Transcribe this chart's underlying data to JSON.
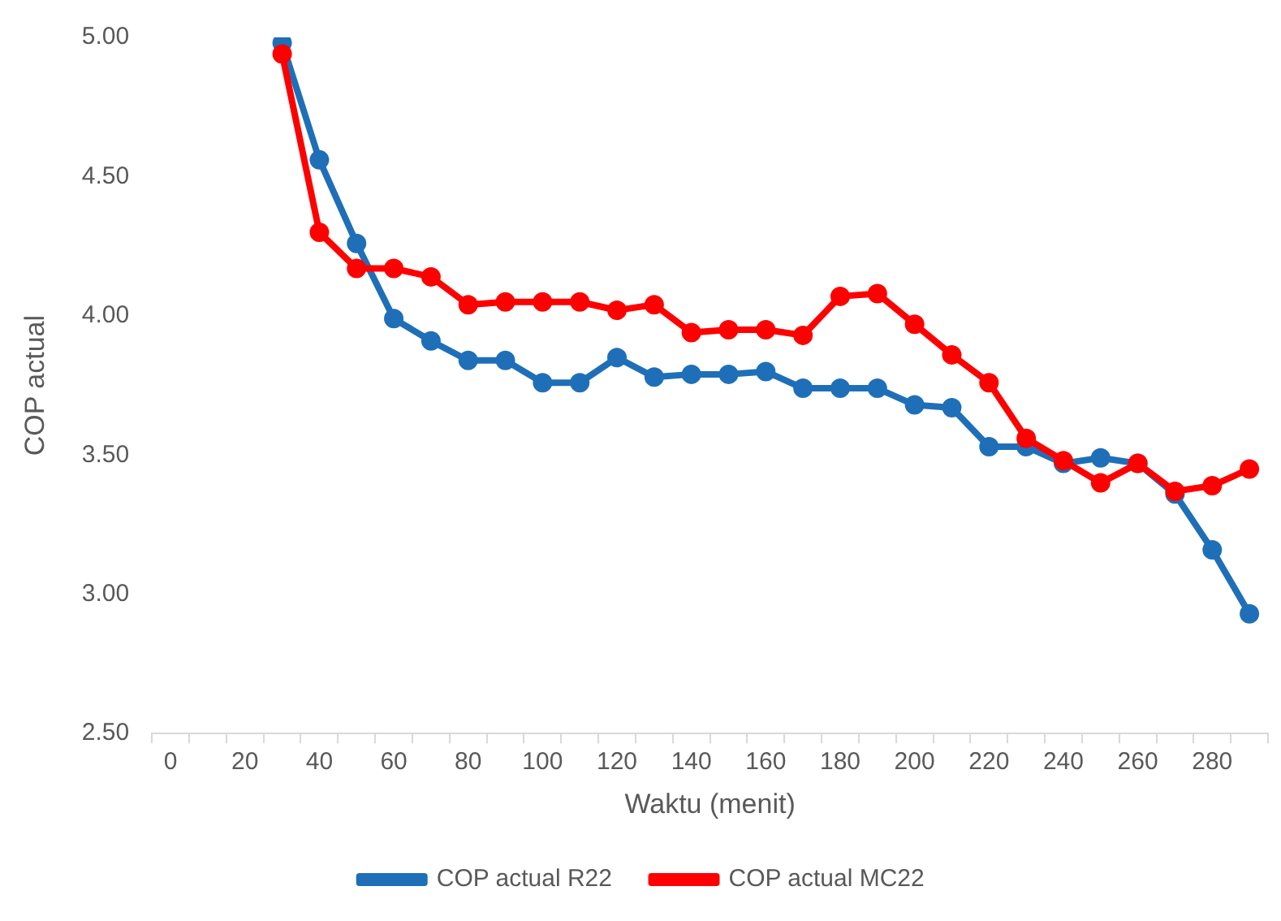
{
  "chart_data": {
    "type": "line",
    "xlabel": "Waktu (menit)",
    "ylabel": "COP actual",
    "categories": [
      "0",
      null,
      "20",
      null,
      "40",
      null,
      "60",
      null,
      "80",
      null,
      "100",
      null,
      "120",
      null,
      "140",
      null,
      "160",
      null,
      "180",
      null,
      "200",
      null,
      "220",
      null,
      "240",
      null,
      "260",
      null,
      "280",
      null
    ],
    "series": [
      {
        "name": "COP actual R22",
        "color": "#1f6fb8",
        "values": [
          null,
          null,
          null,
          4.98,
          4.56,
          4.26,
          3.99,
          3.91,
          3.84,
          3.84,
          3.76,
          3.76,
          3.85,
          3.78,
          3.79,
          3.79,
          3.8,
          3.74,
          3.74,
          3.74,
          3.68,
          3.67,
          3.53,
          3.53,
          3.47,
          3.49,
          3.47,
          3.36,
          3.16,
          2.93
        ]
      },
      {
        "name": "COP actual MC22",
        "color": "#ff0000",
        "values": [
          null,
          null,
          null,
          4.94,
          4.3,
          4.17,
          4.17,
          4.14,
          4.04,
          4.05,
          4.05,
          4.05,
          4.02,
          4.04,
          3.94,
          3.95,
          3.95,
          3.93,
          4.07,
          4.08,
          3.97,
          3.86,
          3.76,
          3.56,
          3.48,
          3.4,
          3.47,
          3.37,
          3.39,
          3.45
        ]
      }
    ],
    "ylim": [
      2.5,
      5
    ],
    "yticks": [
      {
        "value": 2.5,
        "label": "2.50"
      },
      {
        "value": 3,
        "label": "3.00"
      },
      {
        "value": 3.5,
        "label": "3.50"
      },
      {
        "value": 4,
        "label": "4.00"
      },
      {
        "value": 4.5,
        "label": "4.50"
      },
      {
        "value": 5,
        "label": "5.00"
      }
    ],
    "grid": false,
    "legend": "bottom",
    "marker": "circle",
    "line_style": "solid"
  }
}
